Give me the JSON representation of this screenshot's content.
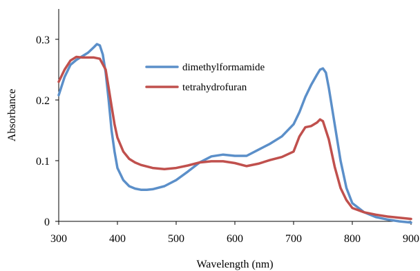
{
  "chart_data": {
    "type": "line",
    "title": "",
    "xlabel": "Wavelength (nm)",
    "ylabel": "Absorbance",
    "xlim": [
      300,
      900
    ],
    "ylim": [
      0,
      0.35
    ],
    "xticks": [
      300,
      400,
      500,
      600,
      700,
      800,
      900
    ],
    "xtick_labels": [
      "300",
      "400",
      "500",
      "600",
      "700",
      "800",
      "900"
    ],
    "yticks": [
      0,
      0.1,
      0.2,
      0.3
    ],
    "ytick_labels": [
      "0",
      "0.1",
      "0.2",
      "0.3"
    ],
    "grid": false,
    "legend_position": "center-top",
    "series": [
      {
        "name": "dimethylformamide",
        "color": "#5b8fc9",
        "x": [
          300,
          310,
          320,
          330,
          340,
          350,
          360,
          365,
          370,
          375,
          380,
          385,
          390,
          395,
          400,
          410,
          420,
          430,
          440,
          450,
          460,
          480,
          500,
          520,
          540,
          560,
          580,
          600,
          620,
          640,
          660,
          680,
          700,
          710,
          720,
          730,
          740,
          745,
          750,
          755,
          760,
          770,
          780,
          790,
          800,
          820,
          840,
          860,
          880,
          900
        ],
        "y": [
          0.208,
          0.238,
          0.258,
          0.266,
          0.272,
          0.278,
          0.287,
          0.292,
          0.29,
          0.275,
          0.245,
          0.2,
          0.15,
          0.115,
          0.088,
          0.068,
          0.058,
          0.054,
          0.052,
          0.052,
          0.053,
          0.058,
          0.068,
          0.082,
          0.097,
          0.107,
          0.11,
          0.108,
          0.108,
          0.118,
          0.128,
          0.14,
          0.16,
          0.18,
          0.205,
          0.225,
          0.242,
          0.25,
          0.252,
          0.245,
          0.22,
          0.16,
          0.1,
          0.055,
          0.03,
          0.015,
          0.007,
          0.003,
          0.0,
          -0.002
        ]
      },
      {
        "name": "tetrahydrofuran",
        "color": "#c0504d",
        "x": [
          300,
          310,
          320,
          330,
          340,
          350,
          360,
          370,
          380,
          385,
          390,
          395,
          400,
          410,
          420,
          430,
          440,
          460,
          480,
          500,
          520,
          540,
          560,
          580,
          600,
          620,
          640,
          660,
          680,
          700,
          710,
          720,
          730,
          740,
          745,
          750,
          760,
          770,
          780,
          790,
          800,
          820,
          840,
          860,
          880,
          900
        ],
        "y": [
          0.23,
          0.25,
          0.265,
          0.271,
          0.27,
          0.27,
          0.27,
          0.268,
          0.25,
          0.22,
          0.19,
          0.16,
          0.138,
          0.115,
          0.103,
          0.097,
          0.093,
          0.088,
          0.086,
          0.088,
          0.092,
          0.097,
          0.099,
          0.099,
          0.096,
          0.091,
          0.095,
          0.101,
          0.106,
          0.115,
          0.14,
          0.155,
          0.157,
          0.163,
          0.168,
          0.165,
          0.135,
          0.09,
          0.055,
          0.035,
          0.022,
          0.015,
          0.011,
          0.008,
          0.006,
          0.004
        ]
      }
    ]
  }
}
